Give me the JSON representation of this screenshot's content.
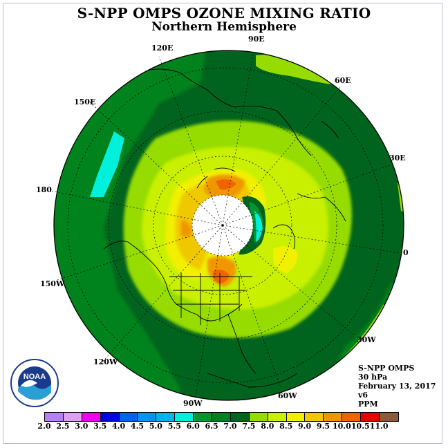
{
  "title": "S-NPP OMPS OZONE MIXING RATIO",
  "subtitle": "Northern Hemisphere",
  "longitude_labels": {
    "lon_90e": "90E",
    "lon_60e": "60E",
    "lon_30e": "30E",
    "lon_0": "0",
    "lon_30w": "30W",
    "lon_60w": "60W",
    "lon_90w": "90W",
    "lon_120w": "120W",
    "lon_150w": "150W",
    "lon_180": "180",
    "lon_150e": "150E",
    "lon_120e": "120E"
  },
  "info": {
    "instrument": "S-NPP OMPS",
    "level": "30 hPa",
    "date": "February 13, 2017",
    "version": "v6",
    "units": "PPM"
  },
  "colorbar": {
    "labels": [
      "2.0",
      "2.5",
      "3.0",
      "3.5",
      "4.0",
      "4.5",
      "5.0",
      "5.5",
      "6.0",
      "6.5",
      "7.0",
      "7.5",
      "8.0",
      "8.5",
      "9.0",
      "9.5",
      "10.0",
      "10.5",
      "11.0"
    ],
    "colors": [
      "#b482f0",
      "#dca0f0",
      "#f000f0",
      "#0000e6",
      "#0064f0",
      "#0096f0",
      "#00b4f0",
      "#00f0dc",
      "#009632",
      "#00821e",
      "#00641e",
      "#96dc00",
      "#c8f000",
      "#f0f000",
      "#f0c800",
      "#f09600",
      "#f06400",
      "#e60000",
      "#8c5a3c"
    ]
  },
  "logo_text": "NOAA"
}
